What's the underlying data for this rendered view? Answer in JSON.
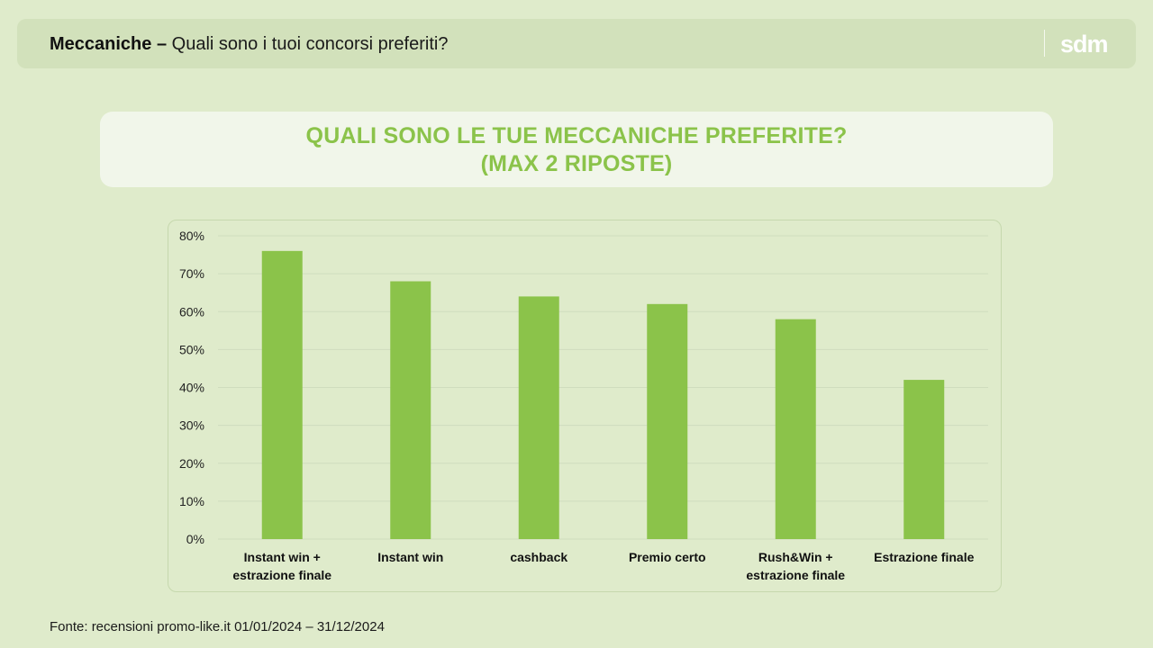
{
  "header": {
    "title_bold": "Meccaniche –",
    "title_rest": " Quali sono i tuoi concorsi preferiti?",
    "logo_text": "sdm"
  },
  "question": {
    "line1": "QUALI SONO LE TUE MECCANICHE PREFERITE?",
    "line2": "(MAX 2 RIPOSTE)"
  },
  "source": "Fonte: recensioni promo-like.it 01/01/2024 – 31/12/2024",
  "colors": {
    "background": "#dfebcb",
    "bar": "#8bc34a",
    "accent": "#8bc34a"
  },
  "chart_data": {
    "type": "bar",
    "categories": [
      [
        "Instant win +",
        "estrazione finale"
      ],
      [
        "Instant win"
      ],
      [
        "cashback"
      ],
      [
        "Premio certo"
      ],
      [
        "Rush&Win +",
        "estrazione finale"
      ],
      [
        "Estrazione finale"
      ]
    ],
    "values": [
      76,
      68,
      64,
      62,
      58,
      42
    ],
    "ylim": [
      0,
      80
    ],
    "yticks": [
      0,
      10,
      20,
      30,
      40,
      50,
      60,
      70,
      80
    ],
    "ytick_suffix": "%",
    "grid": true,
    "legend": "none"
  }
}
